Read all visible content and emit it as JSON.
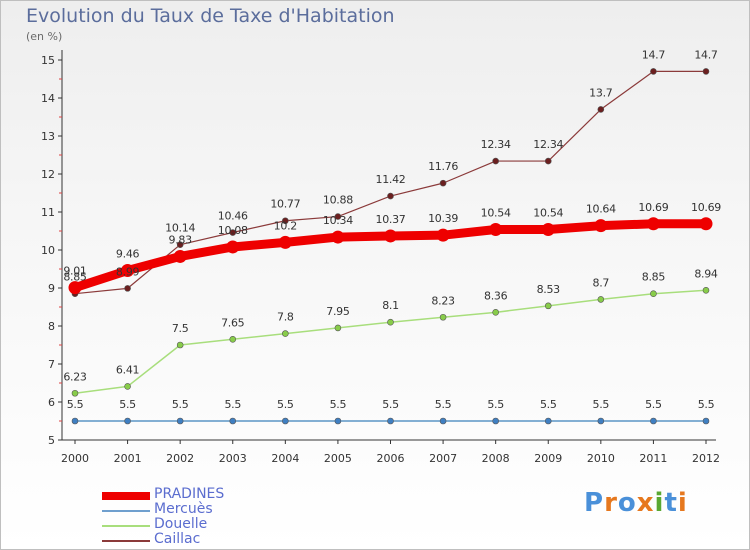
{
  "chart_data": {
    "type": "line",
    "title": "Evolution du Taux de Taxe d'Habitation",
    "subtitle": "(en %)",
    "x": [
      "2000",
      "2001",
      "2002",
      "2003",
      "2004",
      "2005",
      "2006",
      "2007",
      "2008",
      "2009",
      "2010",
      "2011",
      "2012"
    ],
    "ylim": [
      5,
      15
    ],
    "yticks": [
      5,
      6,
      7,
      8,
      9,
      10,
      11,
      12,
      13,
      14,
      15
    ],
    "grid": false,
    "legend_position": "bottom-left",
    "series": [
      {
        "name": "PRADINES",
        "color": "#ee0000",
        "values": [
          9.01,
          9.46,
          9.83,
          10.08,
          10.2,
          10.34,
          10.37,
          10.39,
          10.54,
          10.54,
          10.64,
          10.69,
          10.69
        ],
        "labels": [
          "9.01",
          "9.46",
          "9.83",
          "10.08",
          "10.2",
          "10.34",
          "10.37",
          "10.39",
          "10.54",
          "10.54",
          "10.64",
          "10.69",
          "10.69"
        ]
      },
      {
        "name": "Mercuès",
        "color": "#5b95c6",
        "values": [
          5.5,
          5.5,
          5.5,
          5.5,
          5.5,
          5.5,
          5.5,
          5.5,
          5.5,
          5.5,
          5.5,
          5.5,
          5.5
        ],
        "labels": [
          "5.5",
          "5.5",
          "5.5",
          "5.5",
          "5.5",
          "5.5",
          "5.5",
          "5.5",
          "5.5",
          "5.5",
          "5.5",
          "5.5",
          "5.5"
        ]
      },
      {
        "name": "Douelle",
        "color": "#a8de7c",
        "values": [
          6.23,
          6.41,
          7.5,
          7.65,
          7.8,
          7.95,
          8.1,
          8.23,
          8.36,
          8.53,
          8.7,
          8.85,
          8.94
        ],
        "labels": [
          "6.23",
          "6.41",
          "7.5",
          "7.65",
          "7.8",
          "7.95",
          "8.1",
          "8.23",
          "8.36",
          "8.53",
          "8.7",
          "8.85",
          "8.94"
        ]
      },
      {
        "name": "Caillac",
        "color": "#8b3a3a",
        "values": [
          8.85,
          8.99,
          10.14,
          10.46,
          10.77,
          10.88,
          11.42,
          11.76,
          12.34,
          12.34,
          13.7,
          14.7,
          14.7
        ],
        "labels": [
          "8.85",
          "8.99",
          "10.14",
          "10.46",
          "10.77",
          "10.88",
          "11.42",
          "11.76",
          "12.34",
          "12.34",
          "13.7",
          "14.7",
          "14.7"
        ]
      }
    ]
  },
  "logo": {
    "text": "Proxiti",
    "colors": [
      "#4a90d9",
      "#e6781e",
      "#4a90d9",
      "#e6781e",
      "#5aa832",
      "#4a90d9",
      "#e6781e"
    ]
  }
}
